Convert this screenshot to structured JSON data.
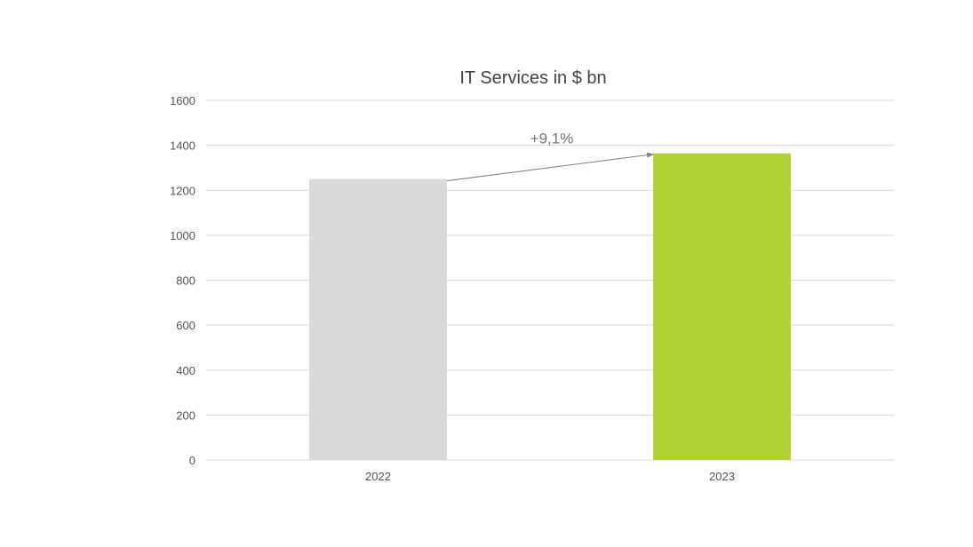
{
  "chart_data": {
    "type": "bar",
    "title": "IT Services in $ bn",
    "xlabel": "",
    "ylabel": "",
    "categories": [
      "2022",
      "2023"
    ],
    "values": [
      1250,
      1364
    ],
    "colors": [
      "#d9d9d9",
      "#b1d235"
    ],
    "ylim": [
      0,
      1600
    ],
    "yticks": [
      0,
      200,
      400,
      600,
      800,
      1000,
      1200,
      1400,
      1600
    ],
    "grid": true,
    "annotation": {
      "text": "+9,1%",
      "from": "2022",
      "to": "2023",
      "arrow_color": "#7f7f7f"
    }
  }
}
